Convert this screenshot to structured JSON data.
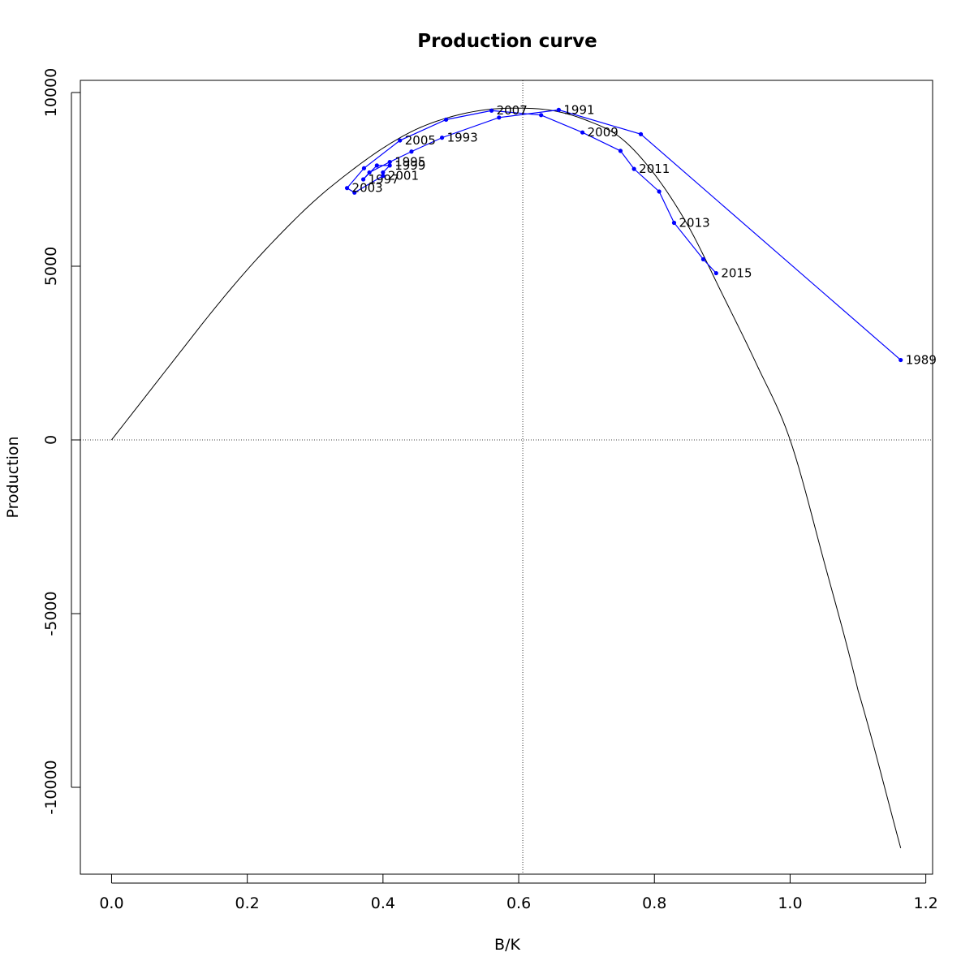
{
  "chart_data": {
    "type": "line",
    "title": "Production curve",
    "xlabel": "B/K",
    "ylabel": "Production",
    "xlim": [
      -0.046,
      1.21
    ],
    "ylim": [
      -12500,
      10350
    ],
    "x_ticks": [
      0.0,
      0.2,
      0.4,
      0.6,
      0.8,
      1.0,
      1.2
    ],
    "x_tick_labels": [
      "0.0",
      "0.2",
      "0.4",
      "0.6",
      "0.8",
      "1.0",
      "1.2"
    ],
    "y_ticks": [
      10000,
      5000,
      0,
      -5000,
      -10000
    ],
    "y_tick_labels": [
      "10000",
      "5000",
      "0",
      "-5000",
      "-10000"
    ],
    "reference_lines": {
      "x": 0.606,
      "y": 0
    },
    "curve": {
      "x_max": 1.163,
      "x": [
        0.0,
        0.05,
        0.1,
        0.15,
        0.2,
        0.25,
        0.3,
        0.35,
        0.4,
        0.45,
        0.5,
        0.55,
        0.6,
        0.65,
        0.7,
        0.75,
        0.8,
        0.85,
        0.9,
        0.95,
        1.0,
        1.05,
        1.1,
        1.163
      ],
      "y": [
        0,
        1250,
        2500,
        3740,
        4900,
        5950,
        6900,
        7700,
        8400,
        8950,
        9300,
        9500,
        9550,
        9480,
        9200,
        8700,
        7650,
        6150,
        4200,
        2200,
        0,
        -3500,
        -7200,
        -11750
      ]
    },
    "series": [
      {
        "color": "#0000ff",
        "points": [
          {
            "x": 1.163,
            "y": 2300,
            "label": "1989"
          },
          {
            "x": 0.78,
            "y": 8800,
            "label": ""
          },
          {
            "x": 0.659,
            "y": 9500,
            "label": "1991"
          },
          {
            "x": 0.571,
            "y": 9280,
            "label": ""
          },
          {
            "x": 0.487,
            "y": 8700,
            "label": "1993"
          },
          {
            "x": 0.442,
            "y": 8300,
            "label": ""
          },
          {
            "x": 0.41,
            "y": 8000,
            "label": "1995"
          },
          {
            "x": 0.38,
            "y": 7700,
            "label": ""
          },
          {
            "x": 0.371,
            "y": 7500,
            "label": "1997"
          },
          {
            "x": 0.391,
            "y": 7900,
            "label": ""
          },
          {
            "x": 0.41,
            "y": 7900,
            "label": "1999"
          },
          {
            "x": 0.4,
            "y": 7700,
            "label": ""
          },
          {
            "x": 0.4,
            "y": 7600,
            "label": "2001"
          },
          {
            "x": 0.358,
            "y": 7120,
            "label": ""
          },
          {
            "x": 0.347,
            "y": 7250,
            "label": "2003"
          },
          {
            "x": 0.372,
            "y": 7820,
            "label": ""
          },
          {
            "x": 0.425,
            "y": 8620,
            "label": "2005"
          },
          {
            "x": 0.493,
            "y": 9220,
            "label": ""
          },
          {
            "x": 0.56,
            "y": 9480,
            "label": "2007"
          },
          {
            "x": 0.633,
            "y": 9350,
            "label": ""
          },
          {
            "x": 0.694,
            "y": 8850,
            "label": "2009"
          },
          {
            "x": 0.75,
            "y": 8320,
            "label": ""
          },
          {
            "x": 0.77,
            "y": 7800,
            "label": "2011"
          },
          {
            "x": 0.807,
            "y": 7150,
            "label": ""
          },
          {
            "x": 0.829,
            "y": 6250,
            "label": "2013"
          },
          {
            "x": 0.872,
            "y": 5200,
            "label": ""
          },
          {
            "x": 0.891,
            "y": 4800,
            "label": "2015"
          }
        ]
      }
    ]
  }
}
